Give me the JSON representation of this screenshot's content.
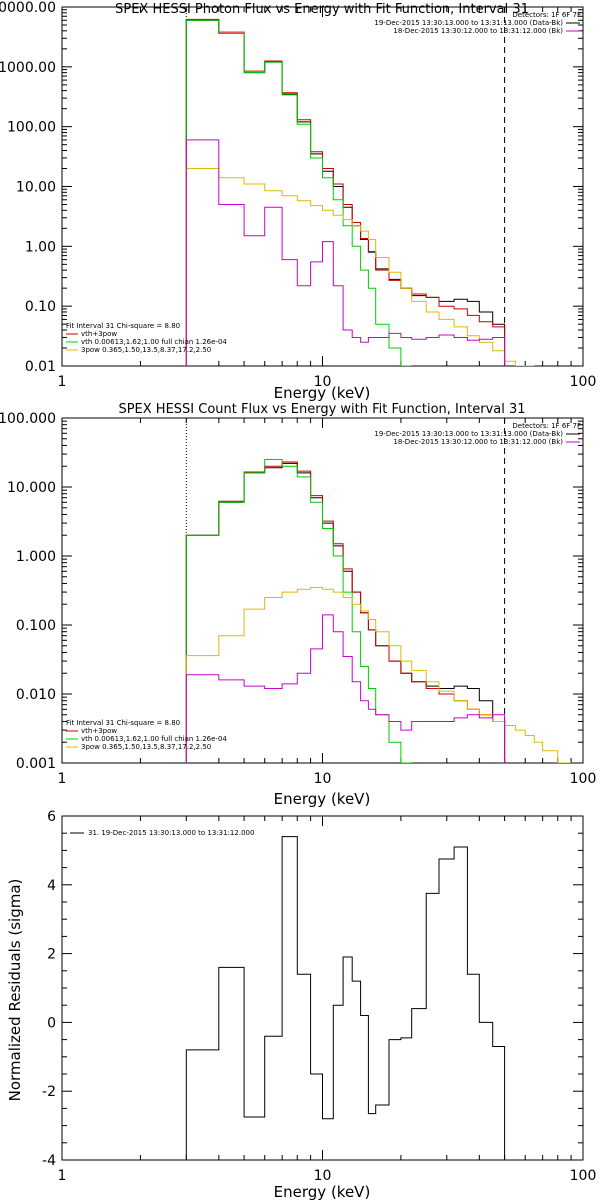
{
  "chart_data": [
    {
      "type": "line",
      "title": "SPEX HESSI Photon Flux vs Energy with Fit Function, Interval 31",
      "xlabel": "Energy (keV)",
      "ylabel": "",
      "xscale": "log",
      "yscale": "log",
      "xlim": [
        1,
        100
      ],
      "ylim": [
        0.01,
        10000
      ],
      "xtick_labels": [
        "1",
        "10",
        "100"
      ],
      "ytick_labels": [
        "0000.00",
        "1000.00",
        "100.00",
        "10.00",
        "1.00",
        "0.10",
        "0.01"
      ],
      "legend_top_right": {
        "detectors": "Detectors: 1F 6F 7F",
        "entries": [
          {
            "text": "19-Dec-2015 13:30:13.000 to 13:31:13.000 (Data-Bk)",
            "color": "#000000"
          },
          {
            "text": "18-Dec-2015 13:30:12.000 to 13:31:12.000 (Bk)",
            "color": "#cc00cc"
          }
        ]
      },
      "legend_bottom_left": [
        {
          "text": "Fit Interval 31   Chi-square = 8.80",
          "color": ""
        },
        {
          "text": "vth+3pow",
          "color": "#cc0000"
        },
        {
          "text": "vth 0.00613,1.62,1.00   full chian 1.26e-04",
          "color": "#00cc00"
        },
        {
          "text": "3pow 0.365,1.50,13.5,8.37,17.2,2.50",
          "color": "#ddbb00"
        }
      ],
      "vlines": [
        {
          "x": 3.0,
          "style": "dotted"
        },
        {
          "x": 50,
          "style": "dashed"
        }
      ],
      "series": [
        {
          "id": "data",
          "color": "#000000",
          "edges": [
            3,
            4,
            5,
            6,
            7,
            8,
            9,
            10,
            11,
            12,
            13,
            14,
            15,
            16,
            18,
            20,
            22,
            25,
            28,
            32,
            36,
            40,
            45,
            50
          ],
          "values": [
            6000,
            3600,
            800,
            1200,
            350,
            120,
            35,
            18,
            10,
            4.5,
            2.2,
            1.3,
            0.8,
            0.42,
            0.28,
            0.2,
            0.15,
            0.14,
            0.12,
            0.13,
            0.12,
            0.08,
            0.05
          ]
        },
        {
          "id": "vth+3pow",
          "color": "#cc0000",
          "edges": [
            3,
            4,
            5,
            6,
            7,
            8,
            9,
            10,
            11,
            12,
            13,
            14,
            15,
            16,
            18,
            20,
            22,
            25,
            28,
            32,
            36,
            40,
            45,
            50
          ],
          "values": [
            6200,
            3800,
            850,
            1250,
            370,
            130,
            38,
            20,
            11,
            5.0,
            2.5,
            1.35,
            0.82,
            0.4,
            0.27,
            0.2,
            0.16,
            0.14,
            0.1,
            0.09,
            0.07,
            0.055,
            0.045
          ]
        },
        {
          "id": "vth",
          "color": "#00cc00",
          "edges": [
            3,
            4,
            5,
            6,
            7,
            8,
            9,
            10,
            11,
            12,
            13,
            14,
            15,
            16,
            18,
            20,
            22
          ],
          "values": [
            6000,
            3600,
            800,
            1200,
            340,
            110,
            30,
            14,
            6,
            2.2,
            1.0,
            0.4,
            0.2,
            0.05,
            0.02,
            0.01
          ]
        },
        {
          "id": "3pow",
          "color": "#ddbb00",
          "edges": [
            3,
            4,
            5,
            6,
            7,
            8,
            9,
            10,
            11,
            12,
            13,
            14,
            15,
            16,
            18,
            20,
            22,
            25,
            28,
            32,
            36,
            40,
            45,
            50,
            55,
            60,
            65
          ],
          "values": [
            20,
            14,
            11,
            8.5,
            7.0,
            5.8,
            4.8,
            4.0,
            3.3,
            2.8,
            2.2,
            1.8,
            1.3,
            0.65,
            0.37,
            0.2,
            0.12,
            0.08,
            0.06,
            0.045,
            0.032,
            0.025,
            0.018,
            0.012,
            0.01,
            0.008
          ]
        },
        {
          "id": "bk",
          "color": "#cc00cc",
          "edges": [
            3,
            4,
            5,
            6,
            7,
            8,
            9,
            10,
            11,
            12,
            13,
            14,
            15,
            16,
            18,
            20,
            22,
            25,
            28,
            32,
            36,
            40,
            45,
            50
          ],
          "values": [
            60,
            5,
            1.5,
            4.5,
            0.6,
            0.22,
            0.55,
            1.2,
            0.22,
            0.04,
            0.03,
            0.025,
            0.03,
            0.03,
            0.035,
            0.03,
            0.028,
            0.03,
            0.033,
            0.03,
            0.027,
            0.028,
            0.03
          ]
        }
      ]
    },
    {
      "type": "line",
      "title": "SPEX HESSI Count Flux vs Energy with Fit Function, Interval 31",
      "xlabel": "Energy (keV)",
      "ylabel": "",
      "xscale": "log",
      "yscale": "log",
      "xlim": [
        1,
        100
      ],
      "ylim": [
        0.001,
        100
      ],
      "xtick_labels": [
        "1",
        "10",
        "100"
      ],
      "ytick_labels": [
        "100.000",
        "10.000",
        "1.000",
        "0.100",
        "0.010",
        "0.001"
      ],
      "legend_top_right": {
        "detectors": "Detectors: 1F 6F 7F",
        "entries": [
          {
            "text": "19-Dec-2015 13:30:13.000 to 13:31:13.000 (Data-Bk)",
            "color": "#000000"
          },
          {
            "text": "18-Dec-2015 13:30:12.000 to 13:31:12.000 (Bk)",
            "color": "#cc00cc"
          }
        ]
      },
      "legend_bottom_left": [
        {
          "text": "Fit Interval 31   Chi-square = 8.80",
          "color": ""
        },
        {
          "text": "vth+3pow",
          "color": "#cc0000"
        },
        {
          "text": "vth 0.00613,1.62,1.00   full chian 1.26e-04",
          "color": "#00cc00"
        },
        {
          "text": "3pow 0.365,1.50,13.5,8.37,17.2,2.50",
          "color": "#ddbb00"
        }
      ],
      "vlines": [
        {
          "x": 3.0,
          "style": "dotted"
        },
        {
          "x": 50,
          "style": "dashed"
        }
      ],
      "series": [
        {
          "id": "data",
          "color": "#000000",
          "edges": [
            3,
            4,
            5,
            6,
            7,
            8,
            9,
            10,
            11,
            12,
            13,
            14,
            15,
            16,
            18,
            20,
            22,
            25,
            28,
            32,
            36,
            40,
            45,
            50
          ],
          "values": [
            2.0,
            6.0,
            16,
            19,
            22,
            16,
            7.0,
            3.0,
            1.4,
            0.6,
            0.3,
            0.15,
            0.085,
            0.05,
            0.03,
            0.02,
            0.015,
            0.013,
            0.012,
            0.013,
            0.012,
            0.008,
            0.004
          ]
        },
        {
          "id": "vth+3pow",
          "color": "#cc0000",
          "edges": [
            3,
            4,
            5,
            6,
            7,
            8,
            9,
            10,
            11,
            12,
            13,
            14,
            15,
            16,
            18,
            20,
            22,
            25,
            28,
            32,
            36,
            40,
            45,
            50
          ],
          "values": [
            2.0,
            6.2,
            16.5,
            20,
            23,
            17,
            7.5,
            3.2,
            1.5,
            0.65,
            0.3,
            0.15,
            0.085,
            0.05,
            0.03,
            0.02,
            0.015,
            0.012,
            0.01,
            0.008,
            0.006,
            0.005,
            0.004
          ]
        },
        {
          "id": "vth",
          "color": "#00cc00",
          "edges": [
            3,
            4,
            5,
            6,
            7,
            8,
            9,
            10,
            11,
            12,
            13,
            14,
            15,
            16,
            18,
            20,
            22
          ],
          "values": [
            2.0,
            6.0,
            16,
            25,
            20,
            14,
            6.0,
            2.5,
            1.0,
            0.3,
            0.08,
            0.025,
            0.012,
            0.005,
            0.002,
            0.001
          ]
        },
        {
          "id": "3pow",
          "color": "#ddbb00",
          "edges": [
            3,
            4,
            5,
            6,
            7,
            8,
            9,
            10,
            11,
            12,
            13,
            14,
            15,
            16,
            18,
            20,
            22,
            25,
            28,
            32,
            36,
            40,
            45,
            50,
            55,
            60,
            65,
            70,
            80,
            90
          ],
          "values": [
            0.036,
            0.07,
            0.17,
            0.25,
            0.3,
            0.33,
            0.35,
            0.33,
            0.3,
            0.25,
            0.2,
            0.16,
            0.12,
            0.08,
            0.05,
            0.03,
            0.022,
            0.015,
            0.011,
            0.008,
            0.006,
            0.005,
            0.004,
            0.0035,
            0.003,
            0.0025,
            0.002,
            0.0015,
            0.001
          ]
        },
        {
          "id": "bk",
          "color": "#cc00cc",
          "edges": [
            3,
            4,
            5,
            6,
            7,
            8,
            9,
            10,
            11,
            12,
            13,
            14,
            15,
            16,
            18,
            20,
            22,
            25,
            28,
            32,
            36,
            40,
            45,
            50
          ],
          "values": [
            0.019,
            0.016,
            0.013,
            0.012,
            0.014,
            0.02,
            0.045,
            0.14,
            0.08,
            0.035,
            0.015,
            0.008,
            0.006,
            0.005,
            0.004,
            0.003,
            0.004,
            0.004,
            0.004,
            0.0045,
            0.005,
            0.0045,
            0.005
          ]
        }
      ]
    },
    {
      "type": "line",
      "title": "",
      "xlabel": "Energy (keV)",
      "ylabel": "Normalized Residuals (sigma)",
      "xscale": "log",
      "yscale": "linear",
      "xlim": [
        1,
        100
      ],
      "ylim": [
        -4,
        6
      ],
      "xtick_labels": [
        "1",
        "10",
        "100"
      ],
      "ytick_labels": [
        "6",
        "4",
        "2",
        "0",
        "-2",
        "-4"
      ],
      "legend_top_left": "31. 19-Dec-2015 13:30:13.000 to 13:31:12.000",
      "series": [
        {
          "id": "residuals",
          "color": "#000000",
          "edges": [
            3,
            4,
            5,
            6,
            7,
            8,
            9,
            10,
            11,
            12,
            13,
            14,
            15,
            16,
            18,
            20,
            22,
            25,
            28,
            32,
            36,
            40,
            45,
            50
          ],
          "values": [
            -0.8,
            1.6,
            -2.75,
            -0.4,
            5.4,
            1.4,
            -1.5,
            -2.8,
            0.5,
            1.9,
            1.2,
            0.2,
            -2.65,
            -2.4,
            -0.5,
            -0.45,
            0.4,
            3.75,
            4.75,
            5.1,
            1.4,
            0,
            -0.7
          ]
        }
      ]
    }
  ]
}
